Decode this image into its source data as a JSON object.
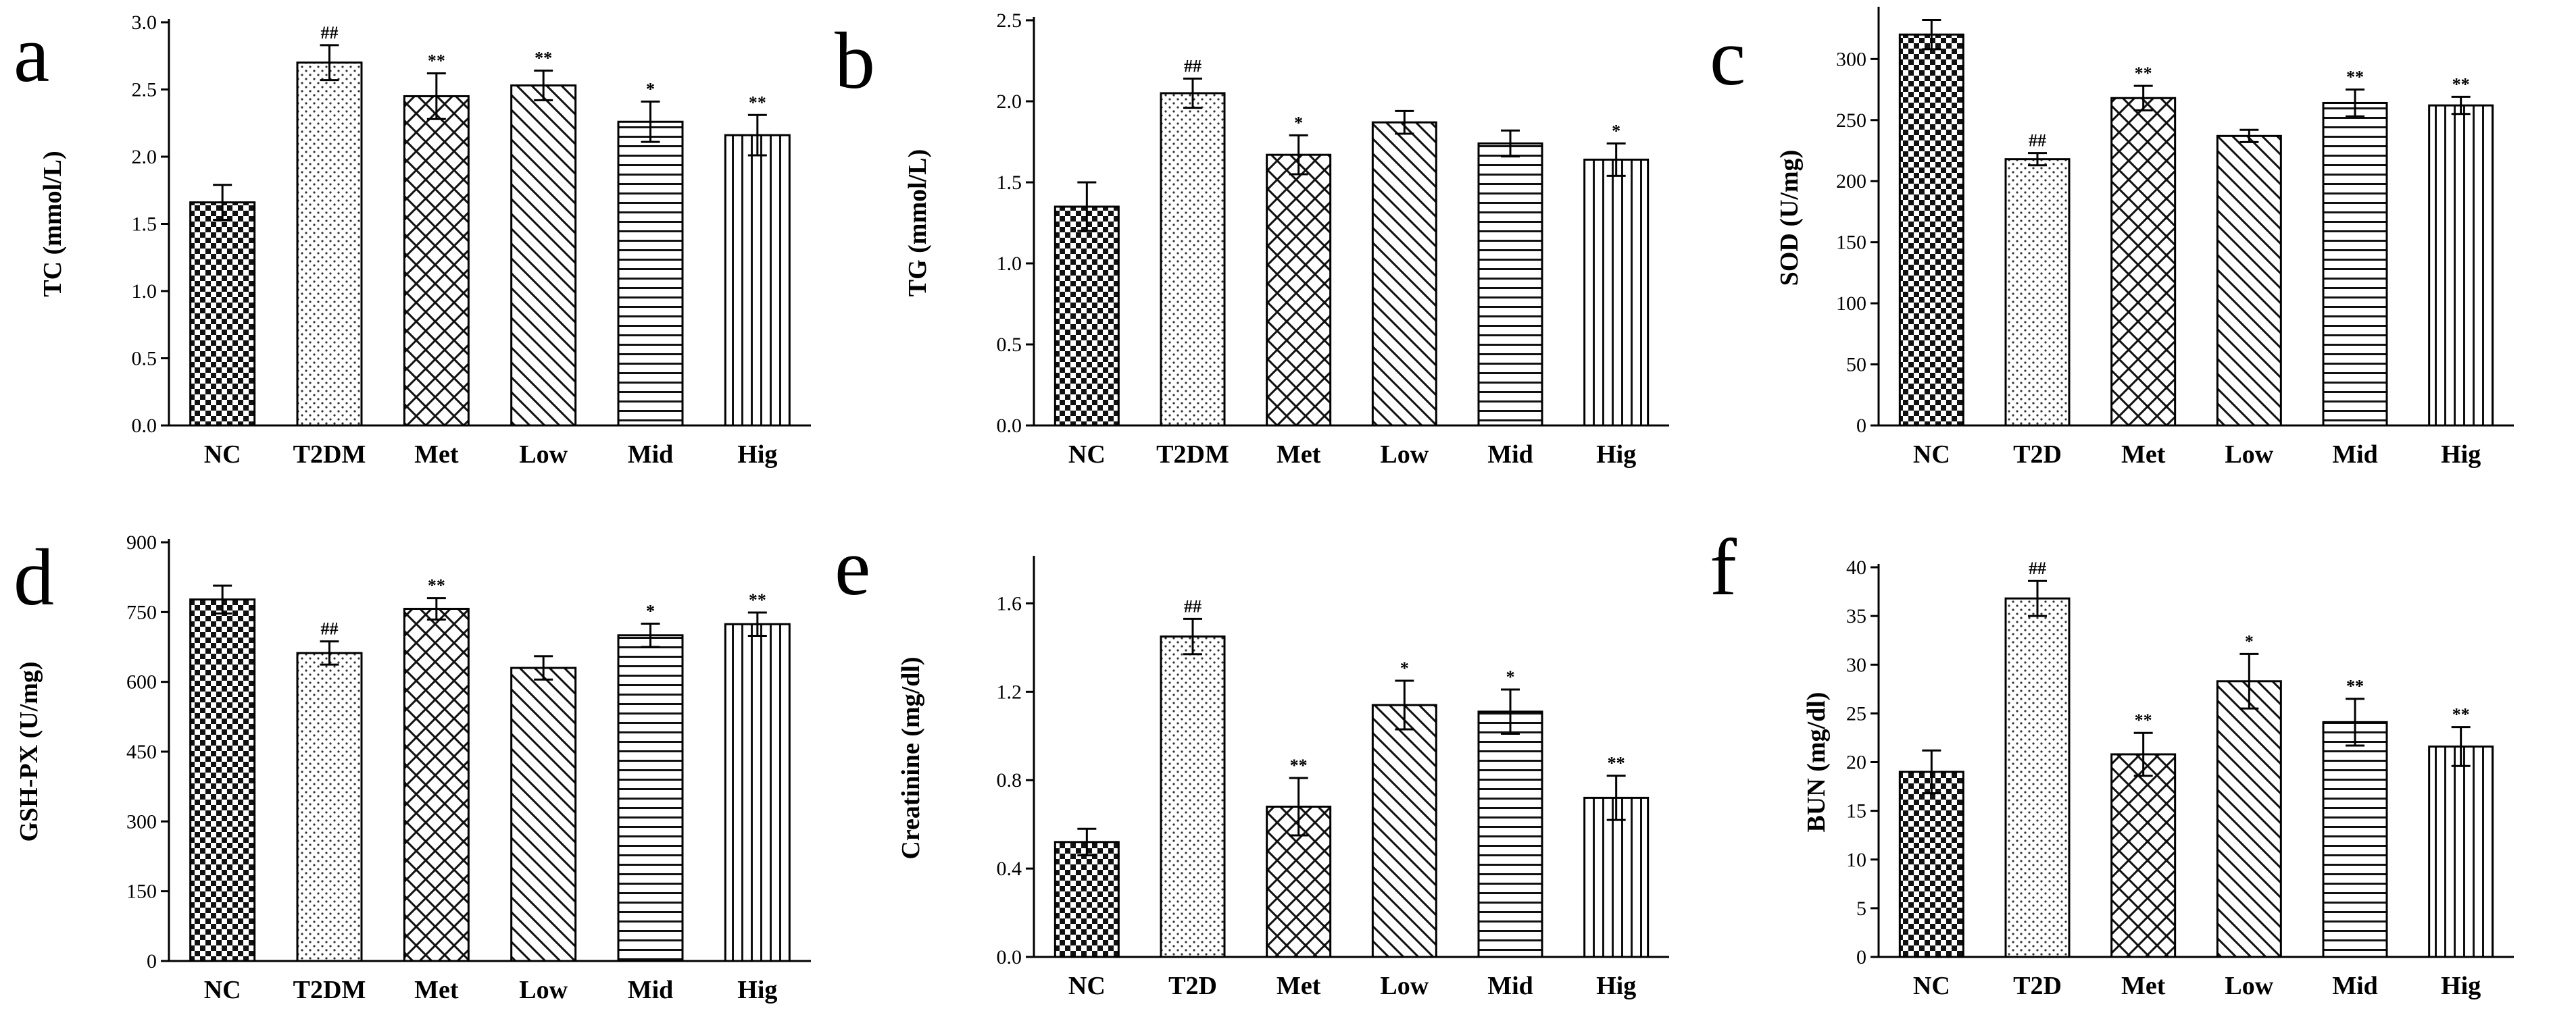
{
  "chart_data": [
    {
      "panel": "a",
      "type": "bar",
      "ylabel": "TC (mmol/L)",
      "ylim": [
        0,
        3.0
      ],
      "yticks": [
        "0.0",
        "0.5",
        "1.0",
        "1.5",
        "2.0",
        "2.5",
        "3.0"
      ],
      "categories": [
        "NC",
        "T2DM",
        "Met",
        "Low",
        "Mid",
        "Hig"
      ],
      "values": [
        1.66,
        2.7,
        2.45,
        2.53,
        2.26,
        2.16
      ],
      "errors": [
        0.13,
        0.13,
        0.17,
        0.11,
        0.15,
        0.15
      ],
      "significance": [
        "",
        "##",
        "**",
        "**",
        "*",
        "**"
      ]
    },
    {
      "panel": "b",
      "type": "bar",
      "ylabel": "TG (mmol/L)",
      "ylim": [
        0,
        2.5
      ],
      "yticks": [
        "0.0",
        "0.5",
        "1.0",
        "1.5",
        "2.0",
        "2.5"
      ],
      "categories": [
        "NC",
        "T2DM",
        "Met",
        "Low",
        "Mid",
        "Hig"
      ],
      "values": [
        1.35,
        2.05,
        1.67,
        1.87,
        1.74,
        1.64
      ],
      "errors": [
        0.15,
        0.09,
        0.12,
        0.07,
        0.08,
        0.1
      ],
      "significance": [
        "",
        "##",
        "*",
        "",
        "",
        "*"
      ]
    },
    {
      "panel": "c",
      "type": "bar",
      "ylabel": "SOD (U/mg)",
      "ylim": [
        0,
        340
      ],
      "yticks": [
        "0",
        "50",
        "100",
        "150",
        "200",
        "250",
        "300"
      ],
      "categories": [
        "NC",
        "T2D",
        "Met",
        "Low",
        "Mid",
        "Hig"
      ],
      "values": [
        320,
        218,
        268,
        237,
        264,
        262
      ],
      "errors": [
        12,
        5,
        10,
        5,
        11,
        7
      ],
      "significance": [
        "",
        "##",
        "**",
        "",
        "**",
        "**"
      ]
    },
    {
      "panel": "d",
      "type": "bar",
      "ylabel": "GSH-PX (U/mg)",
      "ylim": [
        0,
        900
      ],
      "yticks": [
        "0",
        "150",
        "300",
        "450",
        "600",
        "750",
        "900"
      ],
      "categories": [
        "NC",
        "T2DM",
        "Met",
        "Low",
        "Mid",
        "Hig"
      ],
      "values": [
        777,
        662,
        757,
        630,
        700,
        724
      ],
      "errors": [
        30,
        25,
        23,
        25,
        25,
        25
      ],
      "significance": [
        "",
        "##",
        "**",
        "",
        "*",
        "**"
      ]
    },
    {
      "panel": "e",
      "type": "bar",
      "ylabel": "Creatinine (mg/dl)",
      "ylim": [
        0,
        1.8
      ],
      "yticks": [
        "0.0",
        "0.4",
        "0.8",
        "1.2",
        "1.6"
      ],
      "categories": [
        "NC",
        "T2D",
        "Met",
        "Low",
        "Mid",
        "Hig"
      ],
      "values": [
        0.52,
        1.45,
        0.68,
        1.14,
        1.11,
        0.72
      ],
      "errors": [
        0.06,
        0.08,
        0.13,
        0.11,
        0.1,
        0.1
      ],
      "significance": [
        "",
        "##",
        "**",
        "*",
        "*",
        "**"
      ]
    },
    {
      "panel": "f",
      "type": "bar",
      "ylabel": "BUN (mg/dl)",
      "ylim": [
        0,
        40
      ],
      "yticks": [
        "0",
        "5",
        "10",
        "15",
        "20",
        "25",
        "30",
        "35",
        "40"
      ],
      "categories": [
        "NC",
        "T2D",
        "Met",
        "Low",
        "Mid",
        "Hig"
      ],
      "values": [
        19.0,
        36.8,
        20.8,
        28.3,
        24.1,
        21.6
      ],
      "errors": [
        2.2,
        1.8,
        2.2,
        2.8,
        2.4,
        2.0
      ],
      "significance": [
        "",
        "##",
        "**",
        "*",
        "**",
        "**"
      ]
    }
  ]
}
